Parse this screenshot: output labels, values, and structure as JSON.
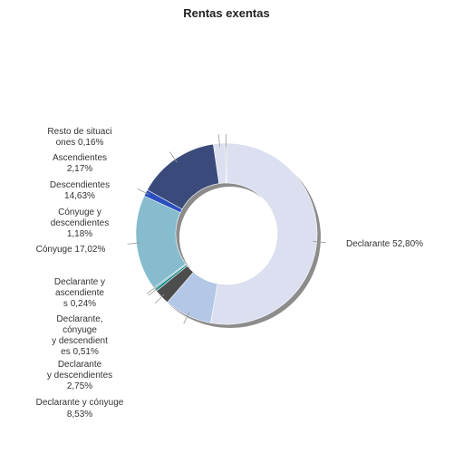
{
  "chart_data": {
    "type": "donut",
    "title": "Rentas exentas",
    "legend": "none",
    "slices": [
      {
        "label": "Declarante 52,80%",
        "value": 52.8,
        "color": "#dcdff0"
      },
      {
        "label": "Declarante y cónyuge 8,53%",
        "value": 8.53,
        "color": "#b3c8e6"
      },
      {
        "label": "Declarante y descendientes 2,75%",
        "value": 2.75,
        "color": "#4d4d4d"
      },
      {
        "label": "Declarante, cónyuge y descendientes 0,51%",
        "value": 0.51,
        "color": "#1f8f8f"
      },
      {
        "label": "Declarante y ascendientes 0,24%",
        "value": 0.24,
        "color": "#5aa0b5"
      },
      {
        "label": "Cónyuge 17,02%",
        "value": 17.02,
        "color": "#86bccd"
      },
      {
        "label": "Cónyuge y descendientes 1,18%",
        "value": 1.18,
        "color": "#2b4fbf"
      },
      {
        "label": "Descendientes 14,63%",
        "value": 14.63,
        "color": "#3a4a7a"
      },
      {
        "label": "Ascendientes 2,17%",
        "value": 2.17,
        "color": "#dcdff0"
      },
      {
        "label": "Resto de situaciones 0,16%",
        "value": 0.16,
        "color": "#7a7a7a"
      }
    ]
  }
}
